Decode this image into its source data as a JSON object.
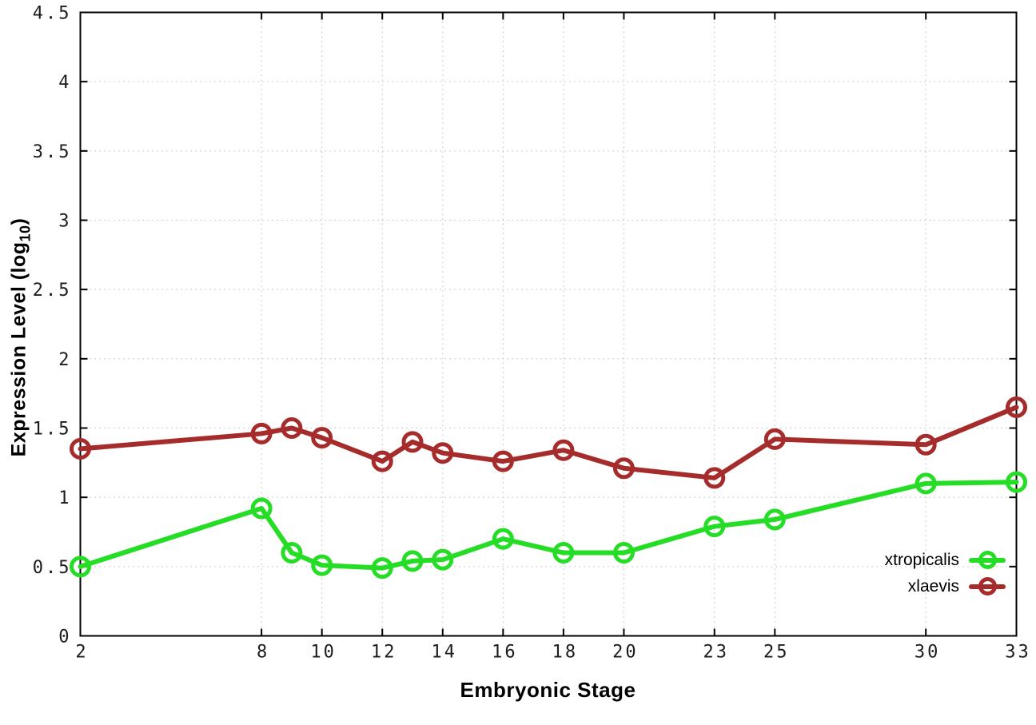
{
  "chart_data": {
    "type": "line",
    "title": "",
    "xlabel": "Embryonic Stage",
    "ylabel": "Expression Level (log10)",
    "ylabel_parts": {
      "main": "Expression Level (log",
      "sub": "10",
      "suffix": ")"
    },
    "xlim": [
      2,
      33
    ],
    "ylim": [
      0,
      4.5
    ],
    "x_ticks": [
      2,
      8,
      10,
      12,
      14,
      16,
      18,
      20,
      23,
      25,
      30,
      33
    ],
    "x_tick_labels": [
      "2",
      "8",
      "10",
      "12",
      "14",
      "16",
      "18",
      "20",
      "23",
      "25",
      "30",
      "33"
    ],
    "y_ticks": [
      0,
      0.5,
      1,
      1.5,
      2,
      2.5,
      3,
      3.5,
      4,
      4.5
    ],
    "y_tick_labels": [
      "0",
      "0.5",
      "1",
      "1.5",
      "2",
      "2.5",
      "3",
      "3.5",
      "4",
      "4.5"
    ],
    "grid": true,
    "legend_position": "inside bottom-right",
    "axis_color": "#000000",
    "grid_color": "#bdbdbd",
    "tick_label_color": "#1c1c1c",
    "x": [
      2,
      8,
      9,
      10,
      12,
      13,
      14,
      16,
      18,
      20,
      23,
      25,
      30,
      33
    ],
    "series": [
      {
        "name": "xtropicalis",
        "color": "#25dd25",
        "marker": "open-circle",
        "values": [
          0.5,
          0.92,
          0.6,
          0.51,
          0.49,
          0.54,
          0.55,
          0.7,
          0.6,
          0.6,
          0.79,
          0.84,
          1.1,
          1.11
        ]
      },
      {
        "name": "xlaevis",
        "color": "#a62c2c",
        "marker": "open-circle",
        "values": [
          1.35,
          1.46,
          1.5,
          1.43,
          1.26,
          1.4,
          1.32,
          1.26,
          1.34,
          1.21,
          1.14,
          1.42,
          1.38,
          1.65
        ]
      }
    ]
  }
}
